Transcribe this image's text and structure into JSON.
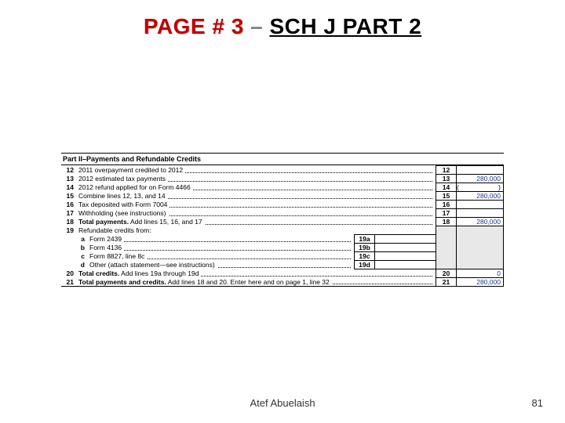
{
  "title": {
    "part1": "PAGE # 3",
    "dash": " – ",
    "part2": "SCH J PART 2"
  },
  "section": "Part II–Payments and Refundable Credits",
  "rows": [
    {
      "no": "12",
      "label": "2011 overpayment credited to 2012",
      "rno": "12",
      "rval": ""
    },
    {
      "no": "13",
      "label": "2012 estimated tax payments",
      "rno": "13",
      "rval": "280,000"
    },
    {
      "no": "14",
      "label": "2012 refund applied for on Form 4466",
      "rno": "14",
      "rval": "",
      "paren": true
    },
    {
      "no": "15",
      "label": "Combine lines 12, 13, and 14",
      "rno": "15",
      "rval": "280,000"
    },
    {
      "no": "16",
      "label": "Tax deposited with Form 7004",
      "rno": "16",
      "rval": ""
    },
    {
      "no": "17",
      "label": "Withholding (see instructions)",
      "rno": "17",
      "rval": ""
    },
    {
      "no": "18",
      "label": "Total payments.",
      "label2": " Add lines 15, 16, and 17",
      "bold": true,
      "rno": "18",
      "rval": "280,000"
    },
    {
      "no": "19",
      "label": "Refundable credits from:",
      "nobox": true
    }
  ],
  "subrows": [
    {
      "sub": "a",
      "label": "Form 2439",
      "mno": "19a"
    },
    {
      "sub": "b",
      "label": "Form 4136",
      "mno": "19b"
    },
    {
      "sub": "c",
      "label": "Form 8827, line 8c",
      "mno": "19c"
    },
    {
      "sub": "d",
      "label": "Other (attach statement—see instructions)",
      "mno": "19d"
    }
  ],
  "rows2": [
    {
      "no": "20",
      "label": "Total credits.",
      "label2": " Add lines 19a through 19d",
      "bold": true,
      "rno": "20",
      "rval": "0"
    },
    {
      "no": "21",
      "label": "Total payments and credits.",
      "label2": " Add lines 18 and 20. Enter here and on page 1, line 32",
      "bold": true,
      "rno": "21",
      "rval": "280,000"
    }
  ],
  "footer": {
    "author": "Atef Abuelaish",
    "page": "81"
  },
  "colors": {
    "value": "#1a3a8f",
    "title_red": "#c00000"
  }
}
